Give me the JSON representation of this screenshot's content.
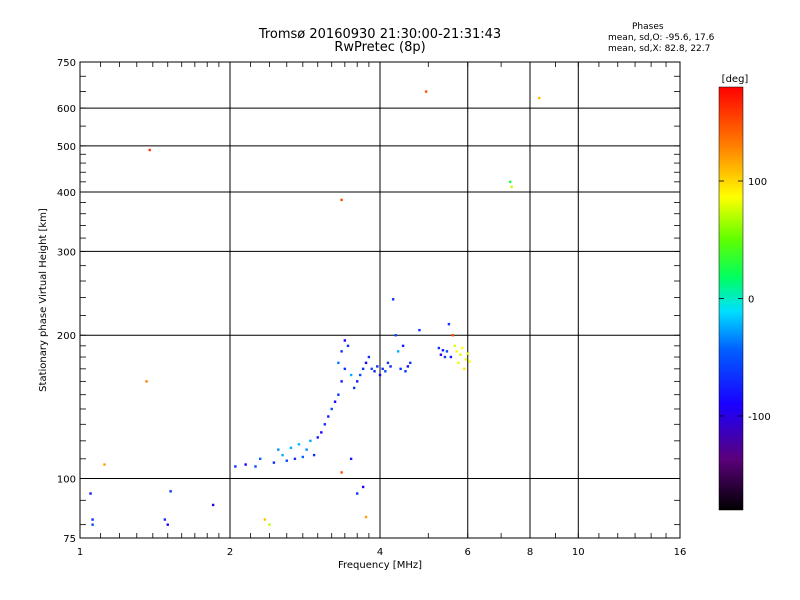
{
  "chart_data": {
    "type": "scatter",
    "title": "Tromsø 20160930 21:30:00-21:31:43",
    "subtitle": "RwPretec (8p)",
    "stats": {
      "heading": "Phases",
      "o_mode": "mean, sd,O: -95.6, 17.6",
      "x_mode": "mean, sd,X: 82.8, 22.7"
    },
    "xlabel": "Frequency [MHz]",
    "ylabel": "Stationary phase Virtual Height [km]",
    "x_scale": "log2",
    "y_scale": "log",
    "xlim": [
      1,
      16
    ],
    "ylim": [
      75,
      750
    ],
    "x_ticks": [
      {
        "value": 1,
        "label": "1"
      },
      {
        "value": 2,
        "label": "2"
      },
      {
        "value": 4,
        "label": "4"
      },
      {
        "value": 6,
        "label": "6"
      },
      {
        "value": 8,
        "label": "8"
      },
      {
        "value": 10,
        "label": "10"
      },
      {
        "value": 16,
        "label": "16"
      }
    ],
    "y_ticks": [
      {
        "value": 75,
        "label": "75"
      },
      {
        "value": 100,
        "label": "100"
      },
      {
        "value": 200,
        "label": "200"
      },
      {
        "value": 300,
        "label": "300"
      },
      {
        "value": 400,
        "label": "400"
      },
      {
        "value": 500,
        "label": "500"
      },
      {
        "value": 600,
        "label": "600"
      },
      {
        "value": 750,
        "label": "750"
      }
    ],
    "grid": true,
    "colorbar": {
      "label": "[deg]",
      "range": [
        -180,
        180
      ],
      "ticks": [
        {
          "value": 100,
          "label": "100"
        },
        {
          "value": 0,
          "label": "0"
        },
        {
          "value": -100,
          "label": "-100"
        }
      ]
    },
    "points": [
      {
        "f": 1.05,
        "h": 93,
        "phase": -105
      },
      {
        "f": 1.06,
        "h": 82,
        "phase": -100
      },
      {
        "f": 1.06,
        "h": 80,
        "phase": -95
      },
      {
        "f": 1.12,
        "h": 107,
        "phase": 120
      },
      {
        "f": 1.38,
        "h": 490,
        "phase": 160
      },
      {
        "f": 1.36,
        "h": 160,
        "phase": 130
      },
      {
        "f": 1.48,
        "h": 82,
        "phase": -100
      },
      {
        "f": 1.5,
        "h": 80,
        "phase": -110
      },
      {
        "f": 1.52,
        "h": 94,
        "phase": -100
      },
      {
        "f": 1.85,
        "h": 88,
        "phase": -120
      },
      {
        "f": 2.05,
        "h": 106,
        "phase": -100
      },
      {
        "f": 2.15,
        "h": 107,
        "phase": -110
      },
      {
        "f": 2.25,
        "h": 106,
        "phase": -95
      },
      {
        "f": 2.3,
        "h": 110,
        "phase": -90
      },
      {
        "f": 2.35,
        "h": 82,
        "phase": 110
      },
      {
        "f": 2.4,
        "h": 80,
        "phase": 70
      },
      {
        "f": 2.45,
        "h": 108,
        "phase": -100
      },
      {
        "f": 2.5,
        "h": 115,
        "phase": -70
      },
      {
        "f": 2.55,
        "h": 112,
        "phase": -60
      },
      {
        "f": 2.6,
        "h": 109,
        "phase": -95
      },
      {
        "f": 2.65,
        "h": 116,
        "phase": -60
      },
      {
        "f": 2.7,
        "h": 110,
        "phase": -100
      },
      {
        "f": 2.75,
        "h": 118,
        "phase": -55
      },
      {
        "f": 2.8,
        "h": 111,
        "phase": -90
      },
      {
        "f": 2.85,
        "h": 115,
        "phase": -70
      },
      {
        "f": 2.9,
        "h": 120,
        "phase": -60
      },
      {
        "f": 2.95,
        "h": 112,
        "phase": -100
      },
      {
        "f": 3.0,
        "h": 122,
        "phase": -105
      },
      {
        "f": 3.05,
        "h": 125,
        "phase": -110
      },
      {
        "f": 3.1,
        "h": 130,
        "phase": -100
      },
      {
        "f": 3.15,
        "h": 135,
        "phase": -105
      },
      {
        "f": 3.2,
        "h": 140,
        "phase": -95
      },
      {
        "f": 3.25,
        "h": 145,
        "phase": -110
      },
      {
        "f": 3.3,
        "h": 150,
        "phase": -100
      },
      {
        "f": 3.35,
        "h": 160,
        "phase": -105
      },
      {
        "f": 3.4,
        "h": 170,
        "phase": -100
      },
      {
        "f": 3.3,
        "h": 175,
        "phase": -80
      },
      {
        "f": 3.35,
        "h": 185,
        "phase": -100
      },
      {
        "f": 3.4,
        "h": 195,
        "phase": -110
      },
      {
        "f": 3.45,
        "h": 190,
        "phase": -100
      },
      {
        "f": 3.5,
        "h": 165,
        "phase": -60
      },
      {
        "f": 3.55,
        "h": 155,
        "phase": -100
      },
      {
        "f": 3.6,
        "h": 160,
        "phase": -105
      },
      {
        "f": 3.65,
        "h": 165,
        "phase": -95
      },
      {
        "f": 3.7,
        "h": 170,
        "phase": -100
      },
      {
        "f": 3.75,
        "h": 175,
        "phase": -110
      },
      {
        "f": 3.8,
        "h": 180,
        "phase": -100
      },
      {
        "f": 3.85,
        "h": 170,
        "phase": -95
      },
      {
        "f": 3.9,
        "h": 168,
        "phase": -105
      },
      {
        "f": 3.95,
        "h": 172,
        "phase": -100
      },
      {
        "f": 4.0,
        "h": 165,
        "phase": -110
      },
      {
        "f": 4.05,
        "h": 170,
        "phase": -100
      },
      {
        "f": 4.1,
        "h": 168,
        "phase": -95
      },
      {
        "f": 4.15,
        "h": 175,
        "phase": -100
      },
      {
        "f": 4.2,
        "h": 172,
        "phase": -105
      },
      {
        "f": 4.25,
        "h": 238,
        "phase": -100
      },
      {
        "f": 4.3,
        "h": 200,
        "phase": -95
      },
      {
        "f": 4.35,
        "h": 185,
        "phase": -60
      },
      {
        "f": 4.4,
        "h": 170,
        "phase": -100
      },
      {
        "f": 4.45,
        "h": 190,
        "phase": -105
      },
      {
        "f": 4.5,
        "h": 168,
        "phase": -100
      },
      {
        "f": 4.55,
        "h": 172,
        "phase": -110
      },
      {
        "f": 4.6,
        "h": 175,
        "phase": -100
      },
      {
        "f": 4.8,
        "h": 205,
        "phase": -100
      },
      {
        "f": 4.95,
        "h": 650,
        "phase": 150
      },
      {
        "f": 5.25,
        "h": 188,
        "phase": -100
      },
      {
        "f": 5.3,
        "h": 182,
        "phase": -110
      },
      {
        "f": 5.35,
        "h": 186,
        "phase": -105
      },
      {
        "f": 5.4,
        "h": 180,
        "phase": -100
      },
      {
        "f": 5.45,
        "h": 185,
        "phase": -95
      },
      {
        "f": 5.5,
        "h": 211,
        "phase": -100
      },
      {
        "f": 5.55,
        "h": 180,
        "phase": -105
      },
      {
        "f": 5.6,
        "h": 200,
        "phase": 150
      },
      {
        "f": 5.65,
        "h": 190,
        "phase": 80
      },
      {
        "f": 5.7,
        "h": 185,
        "phase": 90
      },
      {
        "f": 5.75,
        "h": 175,
        "phase": 85
      },
      {
        "f": 5.8,
        "h": 182,
        "phase": 80
      },
      {
        "f": 5.85,
        "h": 188,
        "phase": 90
      },
      {
        "f": 5.9,
        "h": 170,
        "phase": 95
      },
      {
        "f": 5.95,
        "h": 178,
        "phase": 85
      },
      {
        "f": 6.0,
        "h": 183,
        "phase": 80
      },
      {
        "f": 6.05,
        "h": 176,
        "phase": 90
      },
      {
        "f": 7.3,
        "h": 420,
        "phase": 10
      },
      {
        "f": 7.35,
        "h": 410,
        "phase": 70
      },
      {
        "f": 8.35,
        "h": 630,
        "phase": 110
      },
      {
        "f": 3.35,
        "h": 385,
        "phase": 150
      },
      {
        "f": 3.35,
        "h": 103,
        "phase": 150
      },
      {
        "f": 3.5,
        "h": 110,
        "phase": -105
      },
      {
        "f": 3.6,
        "h": 93,
        "phase": -100
      },
      {
        "f": 3.7,
        "h": 96,
        "phase": -110
      },
      {
        "f": 3.75,
        "h": 83,
        "phase": 120
      }
    ]
  }
}
